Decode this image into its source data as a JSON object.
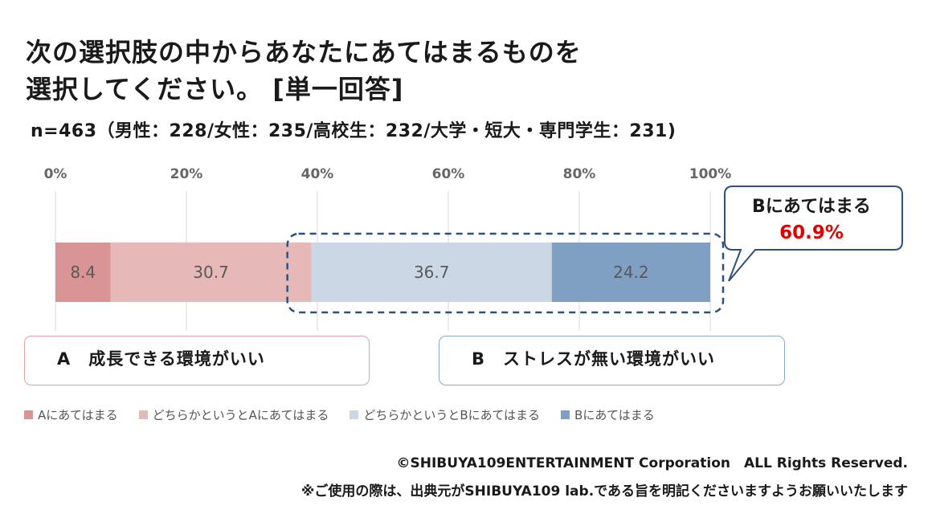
{
  "title_line1": "次の選択肢の中からあなたにあてはまるものを",
  "title_line2": "選択してください。 [単一回答]",
  "subtitle": "n=463（男性：228/女性：235/高校生：232/大学・短大・専門学生：231)",
  "chart_data": {
    "type": "bar",
    "orientation": "horizontal-stacked",
    "x_ticks": [
      "0%",
      "20%",
      "40%",
      "60%",
      "80%",
      "100%"
    ],
    "xlim": [
      0,
      100
    ],
    "grid": true,
    "legend_position": "bottom",
    "series": [
      {
        "name": "Aにあてはまる",
        "value": 8.4,
        "label": "8.4",
        "color": "#d99595"
      },
      {
        "name": "どちらかというとAにあてはまる",
        "value": 30.7,
        "label": "30.7",
        "color": "#e6b9b8"
      },
      {
        "name": "どちらかというとBにあてはまる",
        "value": 36.7,
        "label": "36.7",
        "color": "#ccd7e6"
      },
      {
        "name": "Bにあてはまる",
        "value": 24.2,
        "label": "24.2",
        "color": "#7f9fc3"
      }
    ],
    "callout": {
      "label": "Bにあてはまる",
      "value": "60.9%",
      "value_color": "#e00000"
    }
  },
  "option_a": "A　成長できる環境がいい",
  "option_b": "B　ストレスが無い環境がいい",
  "footer_copyright": "©SHIBUYA109ENTERTAINMENT Corporation　ALL Rights Reserved.",
  "footer_note": "※ご使用の際は、出典元がSHIBUYA109 lab.である旨を明記くださいますようお願いいたします"
}
